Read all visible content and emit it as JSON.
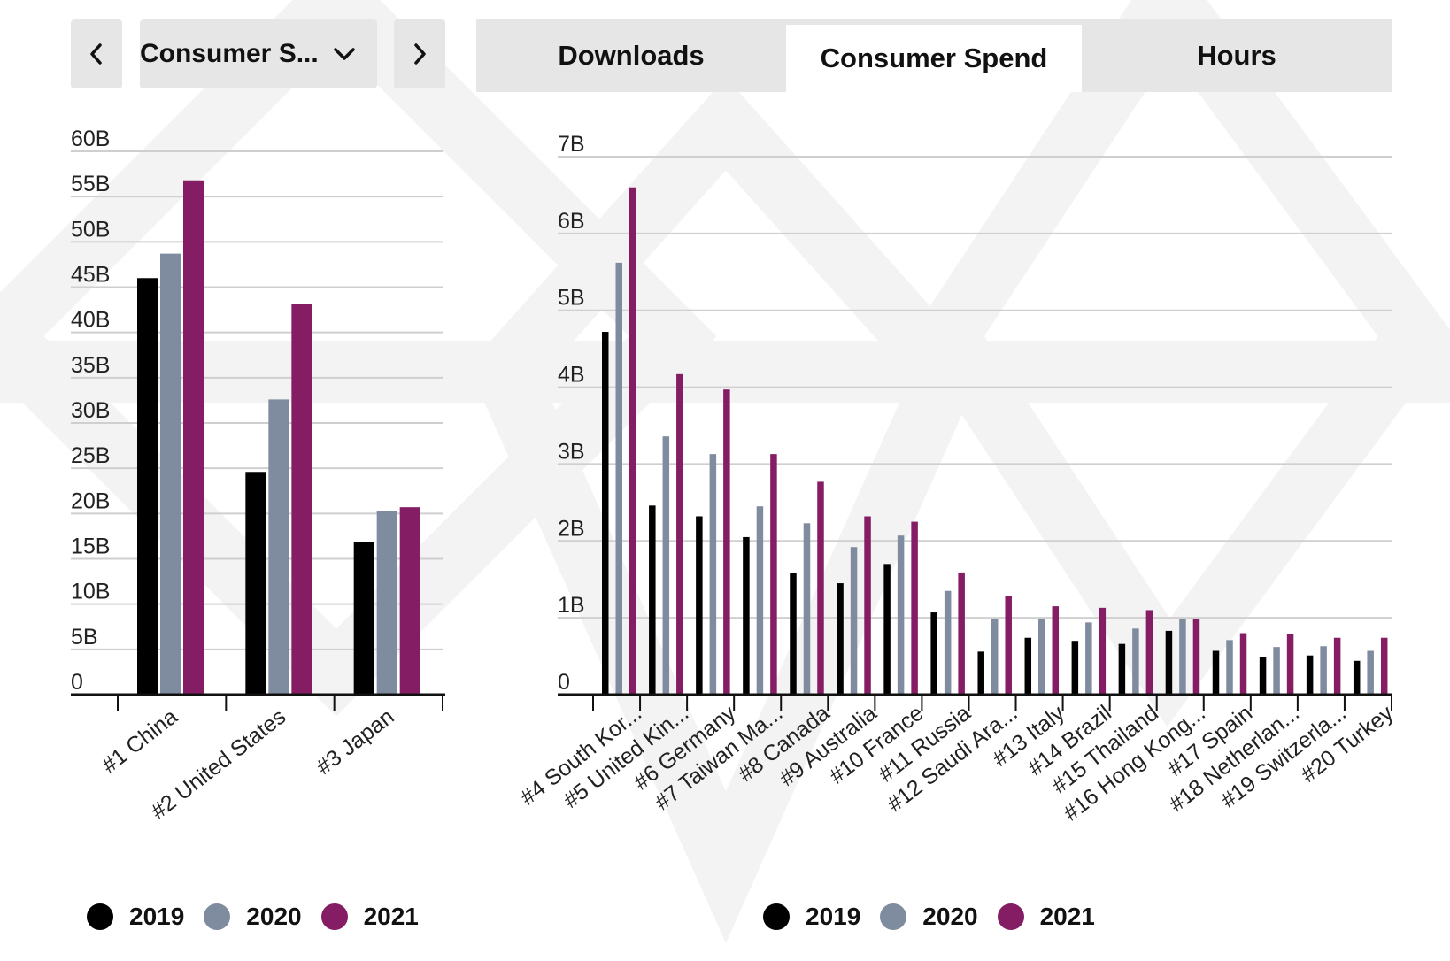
{
  "controls": {
    "metric_label": "Consumer S...",
    "prev_icon": "chevron-left-icon",
    "next_icon": "chevron-right-icon",
    "dropdown_icon": "chevron-down-icon"
  },
  "tabs": [
    {
      "label": "Downloads",
      "active": false
    },
    {
      "label": "Consumer Spend",
      "active": true
    },
    {
      "label": "Hours",
      "active": false
    }
  ],
  "colors": {
    "2019": "#000000",
    "2020": "#7f8b9e",
    "2021": "#851d64"
  },
  "legend": [
    "2019",
    "2020",
    "2021"
  ],
  "chart_data": [
    {
      "type": "bar",
      "categories": [
        "#1 China",
        "#2 United States",
        "#3 Japan"
      ],
      "series": [
        {
          "name": "2019",
          "values": [
            46,
            24.6,
            16.9
          ]
        },
        {
          "name": "2020",
          "values": [
            48.7,
            32.6,
            20.3
          ]
        },
        {
          "name": "2021",
          "values": [
            56.8,
            43.1,
            20.7
          ]
        }
      ],
      "yticks": [
        "0",
        "5B",
        "10B",
        "15B",
        "20B",
        "25B",
        "30B",
        "35B",
        "40B",
        "45B",
        "50B",
        "55B",
        "60B"
      ],
      "ylim": [
        0,
        60
      ],
      "grid": true,
      "legend_position": "bottom"
    },
    {
      "type": "bar",
      "categories": [
        "#4 South Kor...",
        "#5 United Kin...",
        "#6 Germany",
        "#7 Taiwan Ma...",
        "#8 Canada",
        "#9 Australia",
        "#10 France",
        "#11 Russia",
        "#12 Saudi Ara...",
        "#13 Italy",
        "#14 Brazil",
        "#15 Thailand",
        "#16 Hong Kong...",
        "#17 Spain",
        "#18 Netherlan...",
        "#19 Switzerla...",
        "#20 Turkey"
      ],
      "series": [
        {
          "name": "2019",
          "values": [
            4.72,
            2.46,
            2.32,
            2.05,
            1.58,
            1.45,
            1.7,
            1.07,
            0.56,
            0.74,
            0.7,
            0.66,
            0.83,
            0.57,
            0.49,
            0.51,
            0.44
          ]
        },
        {
          "name": "2020",
          "values": [
            5.62,
            3.36,
            3.13,
            2.45,
            2.23,
            1.92,
            2.07,
            1.35,
            0.98,
            0.98,
            0.94,
            0.86,
            0.98,
            0.71,
            0.62,
            0.63,
            0.57
          ]
        },
        {
          "name": "2021",
          "values": [
            6.6,
            4.17,
            3.97,
            3.13,
            2.77,
            2.32,
            2.25,
            1.59,
            1.28,
            1.15,
            1.13,
            1.1,
            0.98,
            0.8,
            0.79,
            0.74,
            0.74
          ]
        }
      ],
      "yticks": [
        "0",
        "1B",
        "2B",
        "3B",
        "4B",
        "5B",
        "6B",
        "7B"
      ],
      "ylim": [
        0,
        7
      ],
      "grid": true,
      "legend_position": "bottom"
    }
  ]
}
